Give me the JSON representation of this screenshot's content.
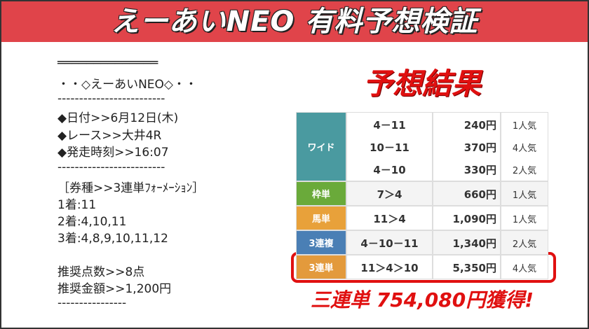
{
  "header": {
    "title": "えーあいNEO 有料予想検証"
  },
  "memo": {
    "lines": [
      "══════════════",
      "・・◇えーあいNEO◇・・",
      "-------------------------",
      "◆日付>>6月12日(木)",
      "◆レース>>大井4R",
      "◆発走時刻>>16:07",
      "-------------------------",
      "［券種>>3連単ﾌｫｰﾒｰｼｮﾝ］",
      "1着:11",
      "2着:4,10,11",
      "3着:4,8,9,10,11,12",
      "推奨点数>>8点",
      "推奨金額>>1,200円",
      "----------------"
    ]
  },
  "result": {
    "title": "予想結果",
    "rows": [
      {
        "bet_type": "ワイド",
        "entries": [
          [
            "4－11",
            "240円",
            "1人気"
          ],
          [
            "10－11",
            "370円",
            "4人気"
          ],
          [
            "4－10",
            "330円",
            "2人気"
          ]
        ]
      },
      {
        "bet_type": "枠単",
        "entries": [
          [
            "7＞4",
            "660円",
            "1人気"
          ]
        ]
      },
      {
        "bet_type": "馬単",
        "entries": [
          [
            "11＞4",
            "1,090円",
            "1人気"
          ]
        ]
      },
      {
        "bet_type": "3連複",
        "entries": [
          [
            "4－10－11",
            "1,340円",
            "2人気"
          ]
        ]
      },
      {
        "bet_type": "3連単",
        "entries": [
          [
            "11＞4＞10",
            "5,350円",
            "4人気"
          ]
        ]
      }
    ],
    "summary": "三連単 754,080円獲得!"
  }
}
